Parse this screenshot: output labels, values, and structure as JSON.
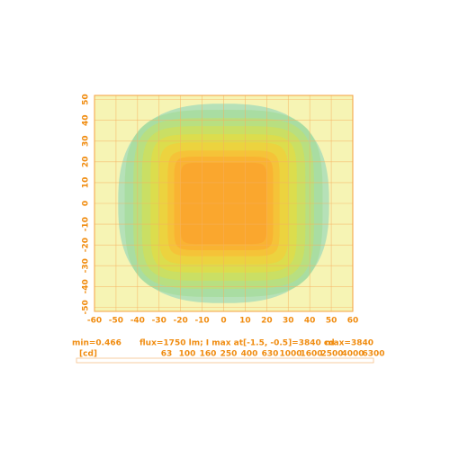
{
  "chart_data": {
    "type": "contour",
    "xlim": [
      -60,
      60
    ],
    "ylim": [
      -52,
      52
    ],
    "xticks": [
      -60,
      -50,
      -40,
      -30,
      -20,
      -10,
      0,
      10,
      20,
      30,
      40,
      50,
      60
    ],
    "yticks": [
      -50,
      -40,
      -30,
      -20,
      -10,
      0,
      10,
      20,
      30,
      40,
      50
    ],
    "grid": true,
    "min_label": "min=0.466",
    "info": "flux=1750 lm; I max  at[-1.5, -0.5]=3840 cd",
    "max_label": "max=3840",
    "unit": "[cd]",
    "levels": [
      63,
      100,
      160,
      250,
      400,
      630,
      1000,
      1600,
      2500,
      4000,
      6300
    ],
    "colors": [
      "#b2dfb8",
      "#a9dca0",
      "#b8de80",
      "#cade62",
      "#dcdc4c",
      "#ecd23e",
      "#f6c238",
      "#f9b232",
      "#faa62e",
      "#f89a2a",
      "#f48c26"
    ]
  }
}
